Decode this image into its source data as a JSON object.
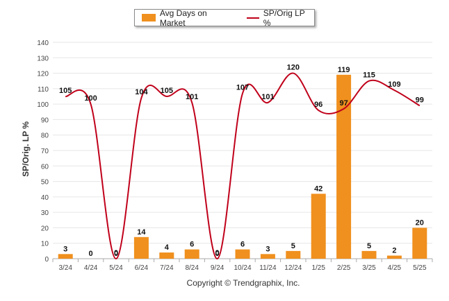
{
  "legend": {
    "bar_label": "Avg Days on Market",
    "line_label": "SP/Orig LP %"
  },
  "copyright": "Copyright © Trendgraphix, Inc.",
  "colors": {
    "bar": "#f0901e",
    "line": "#c0001a",
    "grid": "#e6e6e6",
    "axis": "#aaaaaa"
  },
  "chart_data": {
    "type": "bar+line",
    "categories": [
      "3/24",
      "4/24",
      "5/24",
      "6/24",
      "7/24",
      "8/24",
      "9/24",
      "10/24",
      "11/24",
      "12/24",
      "1/25",
      "2/25",
      "3/25",
      "4/25",
      "5/25"
    ],
    "ylabel": "SP/Orig. LP %",
    "ylim": [
      0,
      140
    ],
    "yticks": [
      0,
      10,
      20,
      30,
      40,
      50,
      60,
      70,
      80,
      90,
      100,
      110,
      120,
      130,
      140
    ],
    "grid": true,
    "legend_position": "top-center",
    "series": [
      {
        "name": "Avg Days on Market",
        "type": "bar",
        "values": [
          3,
          0,
          0,
          14,
          4,
          6,
          0,
          6,
          3,
          5,
          42,
          119,
          5,
          2,
          20
        ]
      },
      {
        "name": "SP/Orig LP %",
        "type": "line",
        "values": [
          105,
          100,
          0,
          104,
          105,
          101,
          0,
          107,
          101,
          120,
          96,
          97,
          115,
          109,
          99
        ]
      }
    ]
  }
}
